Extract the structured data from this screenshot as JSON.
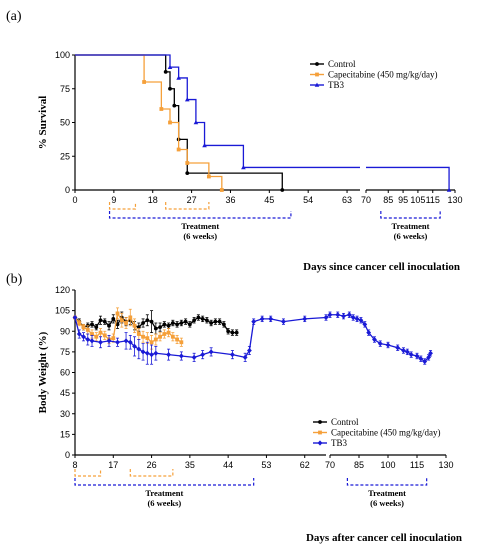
{
  "colors": {
    "control": "#000000",
    "cape": "#f5a03a",
    "tb3": "#1a1ad6"
  },
  "panel_a": {
    "label": "(a)"
  },
  "panel_b": {
    "label": "(b)"
  },
  "chart_data": [
    {
      "type": "line",
      "panel": "a",
      "ylabel": "% Survival",
      "xlabel": "Days since cancer cell inoculation",
      "ylim": [
        0,
        100
      ],
      "yticks": [
        0,
        25,
        50,
        75,
        100
      ],
      "xticks_left": [
        0,
        9,
        18,
        27,
        36,
        45,
        54,
        63
      ],
      "xticks_right": [
        70,
        85,
        95,
        105,
        115,
        130
      ],
      "legend_placement": "top-right",
      "series": [
        {
          "name": "Control",
          "color_key": "control",
          "marker": "circle",
          "x": [
            0,
            21,
            21,
            22,
            22,
            23,
            23,
            24,
            24,
            26,
            26,
            48,
            48
          ],
          "y": [
            100,
            100,
            87.5,
            87.5,
            75,
            75,
            62.5,
            62.5,
            37.5,
            37.5,
            12.5,
            12.5,
            0
          ]
        },
        {
          "name": "Capecitabine (450 mg/kg/day)",
          "color_key": "cape",
          "marker": "square",
          "x": [
            0,
            16,
            16,
            20,
            20,
            22,
            22,
            24,
            24,
            26,
            26,
            31,
            31,
            34,
            34
          ],
          "y": [
            100,
            100,
            80,
            80,
            60,
            60,
            50,
            50,
            30,
            30,
            20,
            20,
            10,
            10,
            0
          ]
        },
        {
          "name": "TB3",
          "color_key": "tb3",
          "marker": "triangle",
          "x": [
            0,
            22,
            22,
            24,
            24,
            26,
            26,
            28,
            28,
            30,
            30,
            39,
            39,
            126,
            126
          ],
          "y": [
            100,
            100,
            91,
            91,
            83,
            83,
            67,
            67,
            50,
            50,
            33,
            33,
            16.7,
            16.7,
            0
          ]
        }
      ],
      "treatment": {
        "label": "Treatment",
        "duration": "(6 weeks)"
      },
      "treatment_periods_left": [
        {
          "color_key": "cape",
          "start": 8,
          "end": 14
        },
        {
          "color_key": "cape",
          "start": 21,
          "end": 31
        },
        {
          "color_key": "tb3",
          "start": 8,
          "end": 50
        }
      ],
      "treatment_periods_right": [
        {
          "color_key": "tb3",
          "start": 80,
          "end": 120
        }
      ]
    },
    {
      "type": "line",
      "panel": "b",
      "ylabel": "Body Weight (%)",
      "xlabel": "Days after cancer cell inoculation",
      "ylim": [
        0,
        120
      ],
      "yticks": [
        0,
        15,
        30,
        45,
        60,
        75,
        90,
        105,
        120
      ],
      "xticks_left": [
        8,
        17,
        26,
        35,
        44,
        53,
        62
      ],
      "xticks_right": [
        70,
        85,
        100,
        115,
        130
      ],
      "legend_placement": "center-right",
      "series": [
        {
          "name": "Control",
          "color_key": "control",
          "marker": "circle",
          "x": [
            8,
            9,
            10,
            11,
            12,
            13,
            14,
            15,
            16,
            17,
            18,
            19,
            20,
            21,
            22,
            23,
            24,
            25,
            26,
            27,
            28,
            29,
            30,
            31,
            32,
            33,
            34,
            35,
            36,
            37,
            38,
            39,
            40,
            41,
            42,
            43,
            44,
            45,
            46
          ],
          "y": [
            100,
            97,
            93,
            94,
            95,
            93,
            98,
            97,
            94,
            99,
            95,
            100,
            97,
            98,
            94,
            93,
            96,
            98,
            97,
            92,
            93,
            95,
            94,
            96,
            95,
            96,
            97,
            95,
            98,
            100,
            99,
            98,
            96,
            97,
            97,
            95,
            90,
            89,
            89
          ],
          "err": [
            0,
            2,
            2,
            2,
            2,
            2,
            3,
            2,
            3,
            3,
            3,
            4,
            3,
            3,
            3,
            3,
            3,
            4,
            8,
            4,
            3,
            2,
            2,
            2,
            2,
            2,
            2,
            2,
            2,
            2,
            2,
            2,
            2,
            2,
            2,
            2,
            2,
            2,
            2
          ]
        },
        {
          "name": "Capecitabine (450 mg/kg/day)",
          "color_key": "cape",
          "marker": "square",
          "x": [
            8,
            9,
            10,
            11,
            12,
            13,
            14,
            15,
            16,
            17,
            18,
            19,
            20,
            21,
            22,
            23,
            24,
            25,
            26,
            27,
            28,
            29,
            30,
            31,
            32,
            33
          ],
          "y": [
            100,
            96,
            93,
            91,
            88,
            86,
            89,
            87,
            84,
            85,
            103,
            98,
            96,
            100,
            94,
            88,
            86,
            85,
            82,
            84,
            86,
            88,
            89,
            86,
            84,
            82
          ],
          "err": [
            0,
            2,
            2,
            3,
            3,
            3,
            3,
            3,
            3,
            3,
            4,
            5,
            4,
            6,
            5,
            4,
            4,
            4,
            5,
            4,
            3,
            3,
            3,
            3,
            3,
            3
          ]
        },
        {
          "name": "TB3",
          "color_key": "tb3",
          "marker": "diamond",
          "x": [
            8,
            9,
            10,
            11,
            12,
            14,
            16,
            18,
            20,
            21,
            22,
            23,
            24,
            25,
            26,
            27,
            30,
            33,
            36,
            38,
            40,
            45,
            48,
            49,
            50,
            52,
            54,
            57,
            62,
            67,
            70,
            74,
            77,
            80,
            82,
            84,
            86,
            88,
            90,
            93,
            96,
            100,
            105,
            108,
            110,
            112,
            115,
            117,
            119,
            121,
            122
          ],
          "y": [
            100,
            88,
            86,
            84,
            83,
            82,
            83,
            82,
            83,
            82,
            79,
            77,
            75,
            74,
            73,
            74,
            73,
            72,
            71,
            73,
            75,
            73,
            71,
            76,
            97,
            99,
            99,
            97,
            99,
            100,
            102,
            102,
            101,
            102,
            100,
            99,
            98,
            95,
            89,
            84,
            81,
            80,
            78,
            76,
            75,
            73,
            72,
            70,
            68,
            71,
            74
          ],
          "err": [
            0,
            3,
            3,
            4,
            4,
            4,
            4,
            3,
            6,
            5,
            7,
            7,
            6,
            8,
            7,
            5,
            4,
            3,
            3,
            3,
            3,
            3,
            3,
            3,
            2,
            2,
            2,
            2,
            2,
            2,
            2,
            2,
            2,
            2,
            2,
            2,
            2,
            2,
            2,
            2,
            2,
            2,
            2,
            2,
            2,
            2,
            2,
            2,
            2,
            2,
            2
          ]
        }
      ],
      "treatment": {
        "label": "Treatment",
        "duration": "(6 weeks)"
      },
      "treatment_periods_left": [
        {
          "color_key": "cape",
          "start": 8,
          "end": 14
        },
        {
          "color_key": "cape",
          "start": 21,
          "end": 31
        },
        {
          "color_key": "tb3",
          "start": 8,
          "end": 50
        }
      ],
      "treatment_periods_right": [
        {
          "color_key": "tb3",
          "start": 79,
          "end": 120
        }
      ]
    }
  ]
}
